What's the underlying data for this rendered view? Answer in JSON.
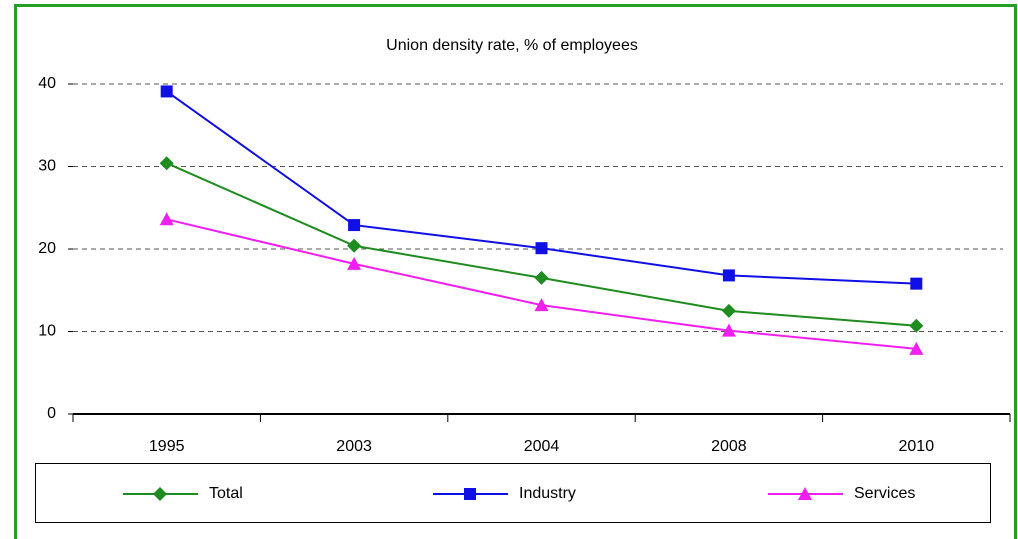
{
  "chart_data": {
    "type": "line",
    "title": "Union density rate, % of employees",
    "categories": [
      "1995",
      "2003",
      "2004",
      "2008",
      "2010"
    ],
    "series": [
      {
        "name": "Total",
        "color": "#1e8c1e",
        "marker": "diamond",
        "values": [
          30.4,
          20.4,
          16.5,
          12.5,
          10.7
        ]
      },
      {
        "name": "Industry",
        "color": "#1010e6",
        "marker": "square",
        "values": [
          39.1,
          22.9,
          20.1,
          16.8,
          15.8
        ]
      },
      {
        "name": "Services",
        "color": "#f01ef0",
        "marker": "triangle",
        "values": [
          23.6,
          18.2,
          13.2,
          10.1,
          7.9
        ]
      }
    ],
    "ylim": [
      0,
      40
    ],
    "yticks": [
      0,
      10,
      20,
      30,
      40
    ],
    "grid": true
  }
}
